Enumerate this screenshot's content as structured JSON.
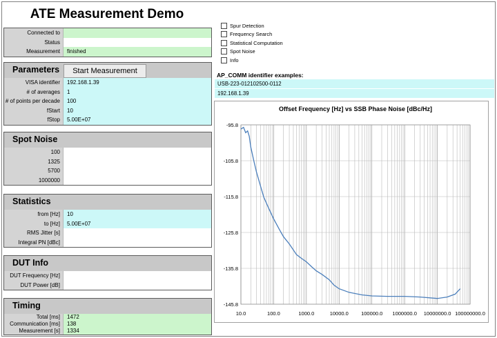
{
  "title": "ATE Measurement Demo",
  "status_rows": [
    {
      "label": "Connected to",
      "value": ""
    },
    {
      "label": "Status",
      "value": ""
    },
    {
      "label": "Measurement",
      "value": "finished"
    }
  ],
  "parameters": {
    "title": "Parameters",
    "button_label": "Start Measurement",
    "rows": [
      {
        "label": "VISA identifier",
        "value": "192.168.1.39"
      },
      {
        "label": "# of averages",
        "value": "1"
      },
      {
        "label": "# of points per decade",
        "value": "100"
      },
      {
        "label": "fStart",
        "value": "10"
      },
      {
        "label": "fStop",
        "value": "5.00E+07"
      }
    ]
  },
  "spot_noise": {
    "title": "Spot Noise",
    "rows": [
      {
        "label": "100",
        "value": ""
      },
      {
        "label": "1325",
        "value": ""
      },
      {
        "label": "5700",
        "value": ""
      },
      {
        "label": "1000000",
        "value": ""
      }
    ]
  },
  "statistics": {
    "title": "Statistics",
    "rows": [
      {
        "label": "from [Hz]",
        "value": "10"
      },
      {
        "label": "to [Hz]",
        "value": "5.00E+07"
      },
      {
        "label": "RMS Jitter [s]",
        "value": ""
      },
      {
        "label": "Integral PN [dBc]",
        "value": ""
      }
    ]
  },
  "dut_info": {
    "title": "DUT Info",
    "rows": [
      {
        "label": "DUT Frequency [Hz]",
        "value": ""
      },
      {
        "label": "DUT Power [dB]",
        "value": ""
      }
    ]
  },
  "timing": {
    "title": "Timing",
    "rows": [
      {
        "label": "Total [ms]",
        "value": "1472"
      },
      {
        "label": "Communication [ms]",
        "value": "138"
      },
      {
        "label": "Measurement [s]",
        "value": "1334"
      }
    ]
  },
  "checkboxes": [
    {
      "label": "Spur Detection",
      "checked": false
    },
    {
      "label": "Frequency Search",
      "checked": false
    },
    {
      "label": "Statistical Computation",
      "checked": false
    },
    {
      "label": "Spot Noise",
      "checked": false
    },
    {
      "label": "Info",
      "checked": false
    }
  ],
  "identifier": {
    "label": "AP_COMM identifier examples:",
    "examples": [
      "USB-223-012102500-0112",
      "192.168.1.39"
    ]
  },
  "chart_data": {
    "type": "line",
    "title": "Offset Frequency [Hz] vs SSB Phase Noise [dBc/Hz]",
    "x_scale": "log",
    "xlim": [
      10,
      100000000
    ],
    "ylim": [
      -145.8,
      -95.8
    ],
    "x_tick_labels": [
      "10.0",
      "100.0",
      "1000.0",
      "10000.0",
      "100000.0",
      "1000000.0",
      "10000000.0",
      "100000000.0"
    ],
    "y_tick_labels": [
      "-95.8",
      "-105.8",
      "-115.8",
      "-125.8",
      "-135.8",
      "-145.8"
    ],
    "grid": true,
    "line_color": "#4a7ebb",
    "series": [
      {
        "points": [
          [
            10,
            -97
          ],
          [
            12,
            -96.5
          ],
          [
            14,
            -98
          ],
          [
            16,
            -97.5
          ],
          [
            18,
            -99
          ],
          [
            20,
            -102
          ],
          [
            25,
            -106
          ],
          [
            30,
            -109
          ],
          [
            40,
            -113
          ],
          [
            50,
            -116
          ],
          [
            70,
            -119
          ],
          [
            100,
            -122
          ],
          [
            150,
            -125
          ],
          [
            200,
            -127
          ],
          [
            300,
            -129
          ],
          [
            500,
            -132
          ],
          [
            700,
            -133
          ],
          [
            1000,
            -134
          ],
          [
            1500,
            -135.5
          ],
          [
            2000,
            -136.5
          ],
          [
            3000,
            -137.5
          ],
          [
            5000,
            -139
          ],
          [
            7000,
            -140.5
          ],
          [
            10000,
            -141.5
          ],
          [
            20000,
            -142.5
          ],
          [
            50000,
            -143.2
          ],
          [
            100000,
            -143.5
          ],
          [
            300000,
            -143.6
          ],
          [
            1000000,
            -143.6
          ],
          [
            3000000,
            -143.8
          ],
          [
            10000000,
            -144.2
          ],
          [
            20000000,
            -143.8
          ],
          [
            35000000,
            -143
          ],
          [
            50000000,
            -141.5
          ]
        ]
      }
    ]
  },
  "colors": {
    "header_gray": "#c8c8c8",
    "label_gray": "#d4d4d4",
    "value_green": "#ccf5cc",
    "value_cyan": "#ccf8f8"
  }
}
